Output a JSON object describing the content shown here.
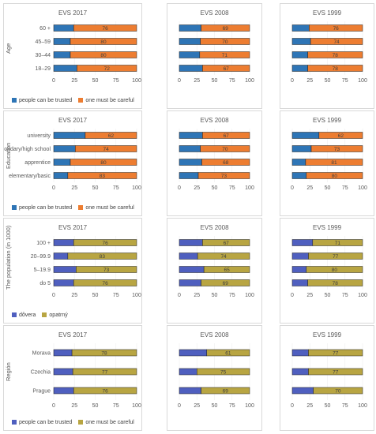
{
  "colors": {
    "trusted_blue": "#2e75b6",
    "careful_orange": "#ed7d31",
    "trusted_purple": "#4f5fbf",
    "careful_olive": "#b8a542",
    "axis_text": "#595959"
  },
  "rows": [
    {
      "id": "age",
      "label": "Age",
      "legend": [
        {
          "label": "people can be trusted",
          "color": "#2e75b6"
        },
        {
          "label": "one must be careful",
          "color": "#ed7d31"
        }
      ]
    },
    {
      "id": "education",
      "label": "Education",
      "legend": [
        {
          "label": "people can be trusted",
          "color": "#2e75b6"
        },
        {
          "label": "one must be careful",
          "color": "#ed7d31"
        }
      ]
    },
    {
      "id": "population",
      "label": "The population (in 1000)",
      "legend": [
        {
          "label": "dôvera",
          "color": "#4f5fbf"
        },
        {
          "label": "opatrný",
          "color": "#b8a542"
        }
      ]
    },
    {
      "id": "region",
      "label": "Región",
      "legend": [
        {
          "label": "people can be trusted",
          "color": "#2e75b6"
        },
        {
          "label": "one must be careful",
          "color": "#ed7d31"
        }
      ]
    }
  ],
  "chart_data": [
    {
      "type": "bar",
      "orientation": "horizontal",
      "stacked": true,
      "title": "EVS 2017",
      "group": "Age",
      "categories": [
        "60 +",
        "45–59",
        "30–44",
        "18–29"
      ],
      "series": [
        {
          "name": "people can be trusted",
          "values": [
            24,
            20,
            20,
            28
          ]
        },
        {
          "name": "one must be careful",
          "values": [
            76,
            80,
            80,
            72
          ]
        }
      ],
      "xlim": [
        0,
        100
      ],
      "xticks": [
        0,
        25,
        50,
        75,
        100
      ],
      "show_category_labels": true
    },
    {
      "type": "bar",
      "orientation": "horizontal",
      "stacked": true,
      "title": "EVS 2008",
      "group": "Age",
      "categories": [
        "60 +",
        "45–59",
        "30–44",
        "18–29"
      ],
      "series": [
        {
          "name": "people can be trusted",
          "values": [
            31,
            30,
            29,
            33
          ]
        },
        {
          "name": "one must be careful",
          "values": [
            69,
            70,
            71,
            67
          ]
        }
      ],
      "xlim": [
        0,
        100
      ],
      "xticks": [
        0,
        25,
        50,
        75,
        100
      ],
      "show_category_labels": false
    },
    {
      "type": "bar",
      "orientation": "horizontal",
      "stacked": true,
      "title": "EVS 1999",
      "group": "Age",
      "categories": [
        "60 +",
        "45–59",
        "30–44",
        "18–29"
      ],
      "series": [
        {
          "name": "people can be trusted",
          "values": [
            24,
            26,
            22,
            22
          ]
        },
        {
          "name": "one must be careful",
          "values": [
            76,
            74,
            78,
            78
          ]
        }
      ],
      "xlim": [
        0,
        100
      ],
      "xticks": [
        0,
        25,
        50,
        75,
        100
      ],
      "show_category_labels": false
    },
    {
      "type": "bar",
      "orientation": "horizontal",
      "stacked": true,
      "title": "EVS 2017",
      "group": "Education",
      "categories": [
        "university",
        "secondary/high school",
        "apprentice",
        "elementary/basic"
      ],
      "series": [
        {
          "name": "people can be trusted",
          "values": [
            38,
            26,
            20,
            17
          ]
        },
        {
          "name": "one must be careful",
          "values": [
            62,
            74,
            80,
            83
          ]
        }
      ],
      "xlim": [
        0,
        100
      ],
      "xticks": [
        0,
        25,
        50,
        75,
        100
      ],
      "show_category_labels": true
    },
    {
      "type": "bar",
      "orientation": "horizontal",
      "stacked": true,
      "title": "EVS 2008",
      "group": "Education",
      "categories": [
        "university",
        "secondary/high school",
        "apprentice",
        "elementary/basic"
      ],
      "series": [
        {
          "name": "people can be trusted",
          "values": [
            33,
            30,
            32,
            27
          ]
        },
        {
          "name": "one must be careful",
          "values": [
            67,
            70,
            68,
            73
          ]
        }
      ],
      "xlim": [
        0,
        100
      ],
      "xticks": [
        0,
        25,
        50,
        75,
        100
      ],
      "show_category_labels": false
    },
    {
      "type": "bar",
      "orientation": "horizontal",
      "stacked": true,
      "title": "EVS 1999",
      "group": "Education",
      "categories": [
        "university",
        "secondary/high school",
        "apprentice",
        "elementary/basic"
      ],
      "series": [
        {
          "name": "people can be trusted",
          "values": [
            38,
            27,
            19,
            20
          ]
        },
        {
          "name": "one must be careful",
          "values": [
            62,
            73,
            81,
            80
          ]
        }
      ],
      "xlim": [
        0,
        100
      ],
      "xticks": [
        0,
        25,
        50,
        75,
        100
      ],
      "show_category_labels": false
    },
    {
      "type": "bar",
      "orientation": "horizontal",
      "stacked": true,
      "title": "EVS 2017",
      "group": "The population (in 1000)",
      "categories": [
        "100 +",
        "20–99.9",
        "5–19.9",
        "do 5"
      ],
      "series": [
        {
          "name": "dôvera",
          "values": [
            24,
            17,
            27,
            24
          ]
        },
        {
          "name": "opatrný",
          "values": [
            76,
            83,
            73,
            76
          ]
        }
      ],
      "xlim": [
        0,
        100
      ],
      "xticks": [
        0,
        25,
        50,
        75,
        100
      ],
      "show_category_labels": true
    },
    {
      "type": "bar",
      "orientation": "horizontal",
      "stacked": true,
      "title": "EVS 2008",
      "group": "The population (in 1000)",
      "categories": [
        "100 +",
        "20–99.9",
        "5–19.9",
        "do 5"
      ],
      "series": [
        {
          "name": "dôvera",
          "values": [
            33,
            26,
            35,
            31
          ]
        },
        {
          "name": "opatrný",
          "values": [
            67,
            74,
            65,
            69
          ]
        }
      ],
      "xlim": [
        0,
        100
      ],
      "xticks": [
        0,
        25,
        50,
        75,
        100
      ],
      "show_category_labels": false
    },
    {
      "type": "bar",
      "orientation": "horizontal",
      "stacked": true,
      "title": "EVS 1999",
      "group": "The population (in 1000)",
      "categories": [
        "100 +",
        "20–99.9",
        "5–19.9",
        "do 5"
      ],
      "series": [
        {
          "name": "dôvera",
          "values": [
            29,
            23,
            20,
            22
          ]
        },
        {
          "name": "opatrný",
          "values": [
            71,
            77,
            80,
            78
          ]
        }
      ],
      "xlim": [
        0,
        100
      ],
      "xticks": [
        0,
        25,
        50,
        75,
        100
      ],
      "show_category_labels": false
    },
    {
      "type": "bar",
      "orientation": "horizontal",
      "stacked": true,
      "title": "EVS 2017",
      "group": "Región",
      "categories": [
        "Morava",
        "Czechia",
        "Prague"
      ],
      "series": [
        {
          "name": "people can be trusted",
          "values": [
            22,
            23,
            24
          ]
        },
        {
          "name": "one must be careful",
          "values": [
            78,
            77,
            76
          ]
        }
      ],
      "xlim": [
        0,
        100
      ],
      "xticks": [
        0,
        25,
        50,
        75,
        100
      ],
      "show_category_labels": true
    },
    {
      "type": "bar",
      "orientation": "horizontal",
      "stacked": true,
      "title": "EVS 2008",
      "group": "Región",
      "categories": [
        "Morava",
        "Czechia",
        "Prague"
      ],
      "series": [
        {
          "name": "people can be trusted",
          "values": [
            39,
            25,
            31
          ]
        },
        {
          "name": "one must be careful",
          "values": [
            61,
            75,
            69
          ]
        }
      ],
      "xlim": [
        0,
        100
      ],
      "xticks": [
        0,
        25,
        50,
        75,
        100
      ],
      "show_category_labels": false
    },
    {
      "type": "bar",
      "orientation": "horizontal",
      "stacked": true,
      "title": "EVS 1999",
      "group": "Región",
      "categories": [
        "Morava",
        "Czechia",
        "Prague"
      ],
      "series": [
        {
          "name": "people can be trusted",
          "values": [
            23,
            23,
            30
          ]
        },
        {
          "name": "one must be careful",
          "values": [
            77,
            77,
            70
          ]
        }
      ],
      "xlim": [
        0,
        100
      ],
      "xticks": [
        0,
        25,
        50,
        75,
        100
      ],
      "show_category_labels": false
    }
  ]
}
